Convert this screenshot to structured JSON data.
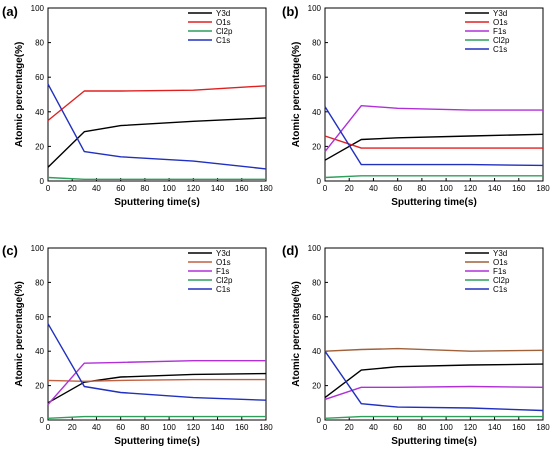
{
  "chart_data": [
    {
      "panel": "(a)",
      "type": "line",
      "xlabel": "Sputtering time(s)",
      "ylabel": "Atomic percentage(%)",
      "xlim": [
        0,
        180
      ],
      "ylim": [
        0,
        100
      ],
      "xticks": [
        0,
        20,
        40,
        60,
        80,
        100,
        120,
        140,
        160,
        180
      ],
      "yticks": [
        0,
        20,
        40,
        60,
        80,
        100
      ],
      "grid": false,
      "legend_position": "top-right",
      "x": [
        0,
        30,
        60,
        120,
        180
      ],
      "series": [
        {
          "name": "Y3d",
          "color": "#000000",
          "values": [
            8,
            28.5,
            32,
            34.5,
            36.5
          ]
        },
        {
          "name": "O1s",
          "color": "#e02020",
          "values": [
            35,
            52,
            52,
            52.5,
            55
          ]
        },
        {
          "name": "Cl2p",
          "color": "#2e9e5b",
          "values": [
            2,
            1,
            1,
            1,
            1
          ]
        },
        {
          "name": "C1s",
          "color": "#2030c0",
          "values": [
            56,
            17,
            14,
            11.5,
            7
          ]
        }
      ]
    },
    {
      "panel": "(b)",
      "type": "line",
      "xlabel": "Sputtering time(s)",
      "ylabel": "Atomic percentage(%)",
      "xlim": [
        0,
        180
      ],
      "ylim": [
        0,
        100
      ],
      "xticks": [
        0,
        20,
        40,
        60,
        80,
        100,
        120,
        140,
        160,
        180
      ],
      "yticks": [
        0,
        20,
        40,
        60,
        80,
        100
      ],
      "grid": false,
      "legend_position": "top-right",
      "x": [
        0,
        30,
        60,
        120,
        180
      ],
      "series": [
        {
          "name": "Y3d",
          "color": "#000000",
          "values": [
            12,
            24,
            25,
            26,
            27
          ]
        },
        {
          "name": "O1s",
          "color": "#e02020",
          "values": [
            26,
            19,
            19,
            19,
            19
          ]
        },
        {
          "name": "F1s",
          "color": "#b030d8",
          "values": [
            17,
            43.5,
            42,
            41,
            41
          ]
        },
        {
          "name": "Cl2p",
          "color": "#2e9e5b",
          "values": [
            2,
            3,
            3,
            3,
            3
          ]
        },
        {
          "name": "C1s",
          "color": "#2030c0",
          "values": [
            43,
            9.5,
            9.5,
            9.5,
            9
          ]
        }
      ]
    },
    {
      "panel": "(c)",
      "type": "line",
      "xlabel": "Sputtering time(s)",
      "ylabel": "Atomic percentage(%)",
      "xlim": [
        0,
        180
      ],
      "ylim": [
        0,
        100
      ],
      "xticks": [
        0,
        20,
        40,
        60,
        80,
        100,
        120,
        140,
        160,
        180
      ],
      "yticks": [
        0,
        20,
        40,
        60,
        80,
        100
      ],
      "grid": false,
      "legend_position": "top-right",
      "x": [
        0,
        30,
        60,
        120,
        180
      ],
      "series": [
        {
          "name": "Y3d",
          "color": "#000000",
          "values": [
            10,
            22,
            25,
            26.5,
            27
          ]
        },
        {
          "name": "O1s",
          "color": "#c06040",
          "values": [
            23,
            22.5,
            23,
            23.5,
            23.5
          ]
        },
        {
          "name": "F1s",
          "color": "#b030d8",
          "values": [
            9,
            33,
            33.5,
            34.5,
            34.5
          ]
        },
        {
          "name": "Cl2p",
          "color": "#2e9e5b",
          "values": [
            1,
            2,
            2,
            2,
            2
          ]
        },
        {
          "name": "C1s",
          "color": "#2030c0",
          "values": [
            56,
            19.5,
            16,
            13,
            11.5
          ]
        }
      ]
    },
    {
      "panel": "(d)",
      "type": "line",
      "xlabel": "Sputtering time(s)",
      "ylabel": "Atomic percentage(%)",
      "xlim": [
        0,
        180
      ],
      "ylim": [
        0,
        100
      ],
      "xticks": [
        0,
        20,
        40,
        60,
        80,
        100,
        120,
        140,
        160,
        180
      ],
      "yticks": [
        0,
        20,
        40,
        60,
        80,
        100
      ],
      "grid": false,
      "legend_position": "top-right",
      "x": [
        0,
        30,
        60,
        120,
        180
      ],
      "series": [
        {
          "name": "Y3d",
          "color": "#000000",
          "values": [
            13,
            29,
            31,
            32,
            32.5
          ]
        },
        {
          "name": "O1s",
          "color": "#a0603a",
          "values": [
            40,
            41,
            41.5,
            40,
            40.5
          ]
        },
        {
          "name": "F1s",
          "color": "#b030d8",
          "values": [
            12,
            19,
            19,
            19.5,
            19
          ]
        },
        {
          "name": "Cl2p",
          "color": "#2e9e5b",
          "values": [
            1,
            2,
            2,
            2,
            2
          ]
        },
        {
          "name": "C1s",
          "color": "#2030c0",
          "values": [
            40,
            9.5,
            7.5,
            7,
            5.5
          ]
        }
      ]
    }
  ]
}
